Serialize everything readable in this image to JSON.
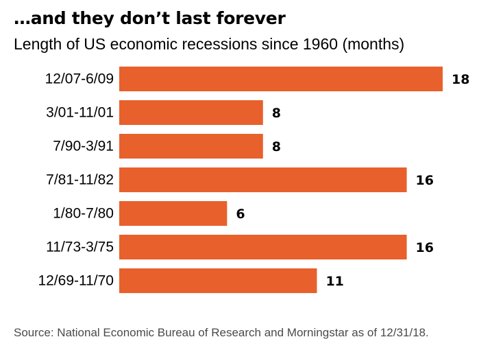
{
  "title": "…and they don’t last forever",
  "subtitle": "Length of US economic recessions since 1960 (months)",
  "source": "Source: National Economic Bureau of Research and Morningstar as of 12/31/18.",
  "colors": {
    "bar": "#e8602c",
    "text": "#000000",
    "source_text": "#4a4a4a"
  },
  "chart_data": {
    "type": "bar",
    "orientation": "horizontal",
    "categories": [
      "12/07-6/09",
      "3/01-11/01",
      "7/90-3/91",
      "7/81-11/82",
      "1/80-7/80",
      "11/73-3/75",
      "12/69-11/70"
    ],
    "values": [
      18,
      8,
      8,
      16,
      6,
      16,
      11
    ],
    "xlim": [
      0,
      18
    ],
    "grid": false,
    "legend": "none"
  }
}
